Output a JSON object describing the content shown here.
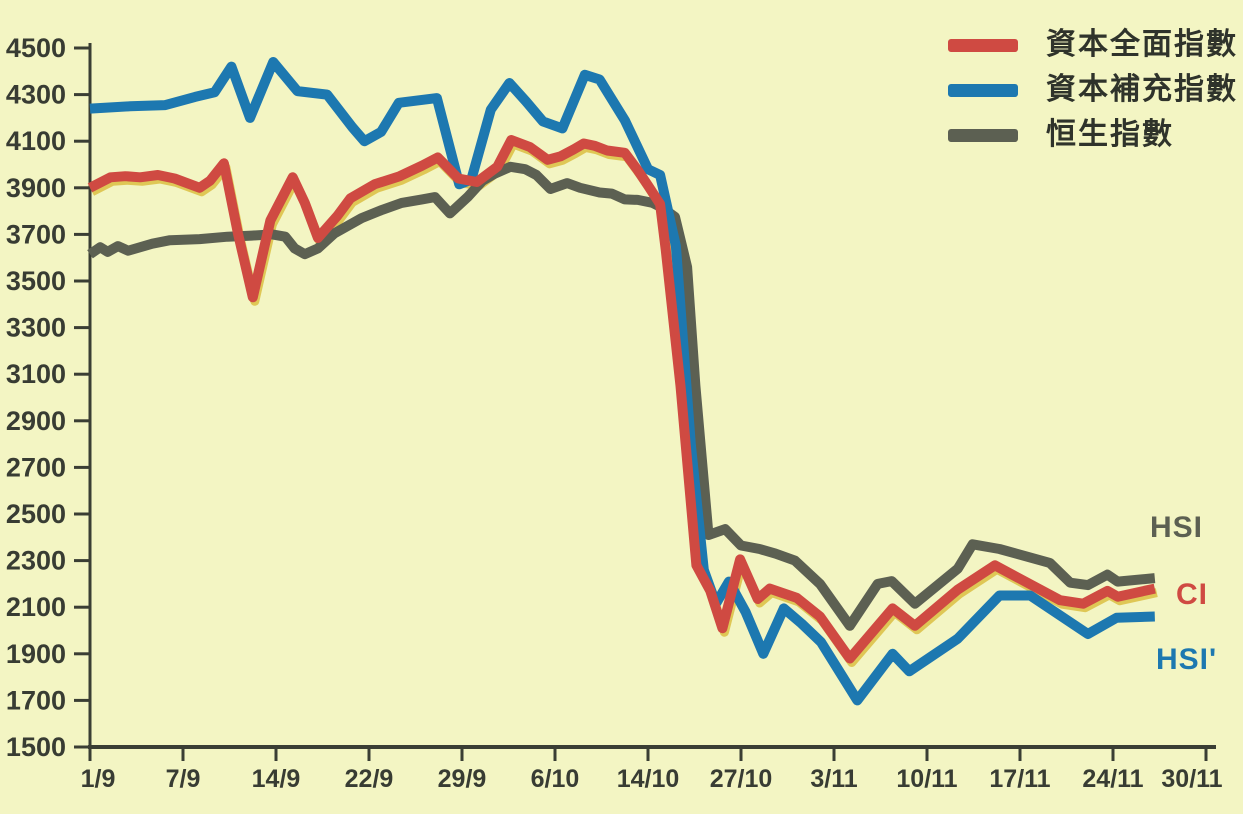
{
  "colors": {
    "background": "#f3f5c3",
    "axis": "#3a3e34",
    "red_series": "#cf4a42",
    "blue_series": "#1d78b0",
    "gray_series": "#5c6052",
    "red_print_shadow": "#d9bc3a"
  },
  "legend": {
    "items": [
      {
        "label": "資本全面指數",
        "color": "#cf4a42"
      },
      {
        "label": "資本補充指數",
        "color": "#1d78b0"
      },
      {
        "label": "恒生指數",
        "color": "#5c6052"
      }
    ]
  },
  "end_labels": [
    {
      "text": "HSI",
      "color": "#5c6052"
    },
    {
      "text": "CI",
      "color": "#cf4a42"
    },
    {
      "text": "HSI'",
      "color": "#1d78b0"
    }
  ],
  "chart_data": {
    "type": "line",
    "title": "",
    "xlabel": "",
    "ylabel": "",
    "grid": false,
    "legend_position": "top-right",
    "x_axis": {
      "tick_labels": [
        "1/9",
        "7/9",
        "14/9",
        "22/9",
        "29/9",
        "6/10",
        "14/10",
        "27/10",
        "3/11",
        "10/11",
        "17/11",
        "24/11",
        "30/11"
      ],
      "note": "x values of data points are given as fractional tick positions (0 = 1/9, 12 = 30/11)"
    },
    "y_axis": {
      "min": 1500,
      "max": 4500,
      "tick_step": 200
    },
    "series": [
      {
        "name": "恒生指數",
        "end_label": "HSI",
        "color": "#5c6052",
        "points": [
          [
            0,
            3615
          ],
          [
            0.11,
            3645
          ],
          [
            0.19,
            3625
          ],
          [
            0.3,
            3650
          ],
          [
            0.41,
            3630
          ],
          [
            0.67,
            3660
          ],
          [
            0.86,
            3675
          ],
          [
            1.18,
            3680
          ],
          [
            1.48,
            3690
          ],
          [
            1.74,
            3695
          ],
          [
            1.96,
            3700
          ],
          [
            2.1,
            3690
          ],
          [
            2.2,
            3640
          ],
          [
            2.31,
            3615
          ],
          [
            2.45,
            3640
          ],
          [
            2.63,
            3705
          ],
          [
            2.92,
            3770
          ],
          [
            3.14,
            3805
          ],
          [
            3.35,
            3835
          ],
          [
            3.57,
            3850
          ],
          [
            3.71,
            3860
          ],
          [
            3.87,
            3790
          ],
          [
            4.06,
            3860
          ],
          [
            4.22,
            3930
          ],
          [
            4.35,
            3960
          ],
          [
            4.52,
            3990
          ],
          [
            4.68,
            3980
          ],
          [
            4.8,
            3955
          ],
          [
            4.95,
            3895
          ],
          [
            5.13,
            3920
          ],
          [
            5.27,
            3900
          ],
          [
            5.48,
            3880
          ],
          [
            5.61,
            3875
          ],
          [
            5.75,
            3850
          ],
          [
            5.89,
            3848
          ],
          [
            6.05,
            3835
          ],
          [
            6.15,
            3815
          ],
          [
            6.29,
            3775
          ],
          [
            6.42,
            3560
          ],
          [
            6.51,
            3050
          ],
          [
            6.65,
            2410
          ],
          [
            6.83,
            2435
          ],
          [
            7.0,
            2365
          ],
          [
            7.2,
            2350
          ],
          [
            7.37,
            2330
          ],
          [
            7.58,
            2300
          ],
          [
            7.85,
            2200
          ],
          [
            8.17,
            2020
          ],
          [
            8.47,
            2200
          ],
          [
            8.62,
            2212
          ],
          [
            8.87,
            2115
          ],
          [
            9.33,
            2265
          ],
          [
            9.49,
            2370
          ],
          [
            9.78,
            2350
          ],
          [
            10.32,
            2290
          ],
          [
            10.54,
            2205
          ],
          [
            10.73,
            2195
          ],
          [
            10.94,
            2240
          ],
          [
            11.05,
            2210
          ],
          [
            11.45,
            2225
          ]
        ]
      },
      {
        "name": "資本補充指數",
        "end_label": "HSI'",
        "color": "#1d78b0",
        "points": [
          [
            0,
            4240
          ],
          [
            0.43,
            4250
          ],
          [
            0.81,
            4255
          ],
          [
            1.13,
            4290
          ],
          [
            1.34,
            4310
          ],
          [
            1.52,
            4420
          ],
          [
            1.72,
            4200
          ],
          [
            1.97,
            4440
          ],
          [
            2.23,
            4315
          ],
          [
            2.55,
            4300
          ],
          [
            2.82,
            4160
          ],
          [
            2.95,
            4100
          ],
          [
            3.13,
            4140
          ],
          [
            3.32,
            4265
          ],
          [
            3.73,
            4285
          ],
          [
            3.97,
            3915
          ],
          [
            4.1,
            3935
          ],
          [
            4.31,
            4235
          ],
          [
            4.51,
            4350
          ],
          [
            4.69,
            4270
          ],
          [
            4.87,
            4185
          ],
          [
            5.08,
            4155
          ],
          [
            5.32,
            4385
          ],
          [
            5.48,
            4365
          ],
          [
            5.75,
            4190
          ],
          [
            6.0,
            3980
          ],
          [
            6.13,
            3955
          ],
          [
            6.3,
            3650
          ],
          [
            6.46,
            2800
          ],
          [
            6.6,
            2260
          ],
          [
            6.73,
            2115
          ],
          [
            6.87,
            2210
          ],
          [
            7.05,
            2080
          ],
          [
            7.24,
            1900
          ],
          [
            7.46,
            2095
          ],
          [
            7.65,
            2030
          ],
          [
            7.86,
            1950
          ],
          [
            8.08,
            1810
          ],
          [
            8.25,
            1700
          ],
          [
            8.63,
            1900
          ],
          [
            8.81,
            1825
          ],
          [
            9.33,
            1965
          ],
          [
            9.78,
            2150
          ],
          [
            10.11,
            2150
          ],
          [
            10.73,
            1985
          ],
          [
            11.04,
            2055
          ],
          [
            11.45,
            2060
          ]
        ]
      },
      {
        "name": "資本全面指數",
        "end_label": "CI",
        "color": "#cf4a42",
        "points": [
          [
            0,
            3900
          ],
          [
            0.22,
            3945
          ],
          [
            0.38,
            3950
          ],
          [
            0.54,
            3945
          ],
          [
            0.73,
            3955
          ],
          [
            0.91,
            3940
          ],
          [
            1.18,
            3900
          ],
          [
            1.29,
            3930
          ],
          [
            1.44,
            4005
          ],
          [
            1.59,
            3705
          ],
          [
            1.75,
            3430
          ],
          [
            1.94,
            3760
          ],
          [
            2.18,
            3945
          ],
          [
            2.31,
            3835
          ],
          [
            2.45,
            3685
          ],
          [
            2.66,
            3780
          ],
          [
            2.8,
            3855
          ],
          [
            3.06,
            3915
          ],
          [
            3.33,
            3950
          ],
          [
            3.57,
            3995
          ],
          [
            3.74,
            4030
          ],
          [
            3.96,
            3940
          ],
          [
            4.16,
            3925
          ],
          [
            4.38,
            3990
          ],
          [
            4.53,
            4105
          ],
          [
            4.73,
            4075
          ],
          [
            4.92,
            4020
          ],
          [
            5.06,
            4035
          ],
          [
            5.2,
            4065
          ],
          [
            5.31,
            4090
          ],
          [
            5.43,
            4080
          ],
          [
            5.56,
            4060
          ],
          [
            5.75,
            4050
          ],
          [
            5.89,
            3975
          ],
          [
            6.0,
            3910
          ],
          [
            6.13,
            3830
          ],
          [
            6.19,
            3635
          ],
          [
            6.35,
            3050
          ],
          [
            6.52,
            2280
          ],
          [
            6.67,
            2170
          ],
          [
            6.8,
            2010
          ],
          [
            6.99,
            2305
          ],
          [
            7.18,
            2135
          ],
          [
            7.31,
            2180
          ],
          [
            7.6,
            2140
          ],
          [
            7.85,
            2060
          ],
          [
            8.17,
            1880
          ],
          [
            8.63,
            2095
          ],
          [
            8.87,
            2020
          ],
          [
            9.33,
            2175
          ],
          [
            9.73,
            2280
          ],
          [
            10.43,
            2130
          ],
          [
            10.68,
            2115
          ],
          [
            10.94,
            2170
          ],
          [
            11.05,
            2145
          ],
          [
            11.45,
            2180
          ]
        ]
      }
    ]
  }
}
